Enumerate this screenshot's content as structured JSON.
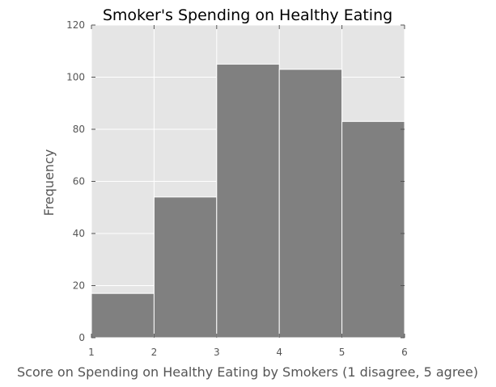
{
  "chart_data": {
    "type": "bar",
    "subtype": "histogram",
    "title": "Smoker's Spending on Healthy Eating",
    "xlabel": "Score on Spending on Healthy Eating by Smokers (1 disagree, 5 agree)",
    "ylabel": "Frequency",
    "bins": [
      [
        1,
        2
      ],
      [
        2,
        3
      ],
      [
        3,
        4
      ],
      [
        4,
        5
      ],
      [
        5,
        6
      ]
    ],
    "values": [
      17,
      54,
      105,
      103,
      83
    ],
    "xlim": [
      1,
      6
    ],
    "ylim": [
      0,
      120
    ],
    "xticks": [
      "1",
      "2",
      "3",
      "4",
      "5",
      "6"
    ],
    "yticks": [
      "0",
      "20",
      "40",
      "60",
      "80",
      "100",
      "120"
    ],
    "grid": true,
    "colors": {
      "plot_background": "#e5e5e5",
      "bar_fill": "#808080",
      "bar_edge": "#ffffff",
      "grid": "#ffffff",
      "tick": "#555555"
    }
  }
}
